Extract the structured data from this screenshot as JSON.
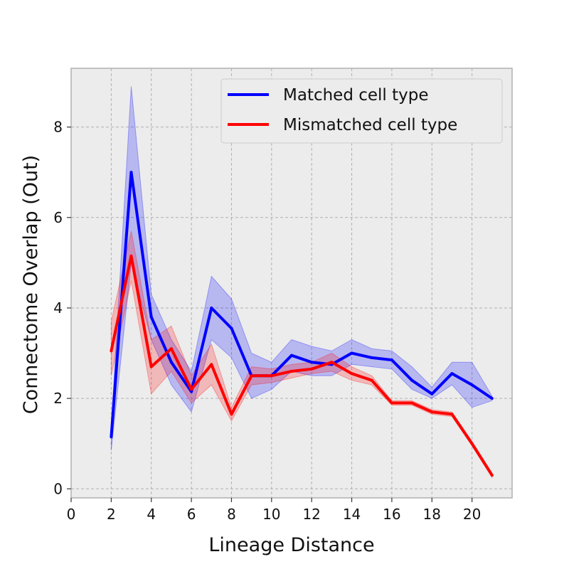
{
  "chart_data": {
    "type": "line",
    "xlabel": "Lineage Distance",
    "ylabel": "Connectome Overlap (Out)",
    "xlim": [
      0,
      22
    ],
    "ylim": [
      -0.2,
      9.3
    ],
    "x_ticks": [
      "0",
      "2",
      "4",
      "6",
      "8",
      "10",
      "12",
      "14",
      "16",
      "18",
      "20"
    ],
    "y_ticks": [
      "0",
      "2",
      "4",
      "6",
      "8"
    ],
    "grid": true,
    "legend_position": "top-right",
    "series": [
      {
        "name": "Matched cell type",
        "color": "#0000ff",
        "x": [
          2,
          3,
          4,
          5,
          6,
          7,
          8,
          9,
          10,
          11,
          12,
          13,
          14,
          15,
          16,
          17,
          18,
          19,
          20,
          21
        ],
        "y": [
          1.15,
          7.0,
          3.8,
          2.8,
          2.15,
          4.0,
          3.55,
          2.5,
          2.5,
          2.95,
          2.8,
          2.75,
          3.0,
          2.9,
          2.85,
          2.4,
          2.1,
          2.55,
          2.3,
          2.0
        ],
        "lower": [
          0.85,
          5.0,
          3.3,
          2.3,
          1.7,
          3.3,
          2.9,
          2.0,
          2.2,
          2.6,
          2.5,
          2.5,
          2.75,
          2.7,
          2.65,
          2.2,
          2.0,
          2.3,
          1.8,
          1.95
        ],
        "upper": [
          1.4,
          8.9,
          4.3,
          3.3,
          2.6,
          4.7,
          4.2,
          3.0,
          2.8,
          3.3,
          3.15,
          3.05,
          3.3,
          3.1,
          3.05,
          2.7,
          2.25,
          2.8,
          2.8,
          2.05
        ]
      },
      {
        "name": "Mismatched cell type",
        "color": "#ff0000",
        "x": [
          2,
          3,
          4,
          5,
          6,
          7,
          8,
          9,
          10,
          11,
          12,
          13,
          14,
          15,
          16,
          17,
          18,
          19,
          20,
          21
        ],
        "y": [
          3.05,
          5.15,
          2.7,
          3.1,
          2.2,
          2.75,
          1.65,
          2.5,
          2.5,
          2.6,
          2.65,
          2.8,
          2.55,
          2.4,
          1.9,
          1.9,
          1.7,
          1.65,
          1.0,
          0.3
        ],
        "lower": [
          2.5,
          4.6,
          2.1,
          2.6,
          1.9,
          2.3,
          1.5,
          2.3,
          2.35,
          2.45,
          2.55,
          2.6,
          2.4,
          2.3,
          1.85,
          1.85,
          1.65,
          1.6,
          0.95,
          0.25
        ],
        "upper": [
          3.7,
          5.7,
          3.3,
          3.6,
          2.5,
          3.2,
          1.8,
          2.7,
          2.65,
          2.75,
          2.8,
          3.0,
          2.7,
          2.5,
          1.95,
          1.95,
          1.75,
          1.7,
          1.05,
          0.35
        ]
      }
    ]
  }
}
